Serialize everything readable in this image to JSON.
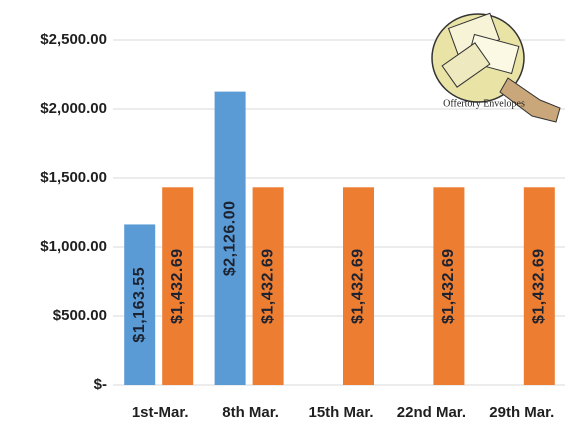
{
  "chart_data": {
    "type": "bar",
    "annotation": "Offertory Envelopes",
    "categories": [
      "1st-Mar.",
      "8th Mar.",
      "15th Mar.",
      "22nd Mar.",
      "29th Mar."
    ],
    "series": [
      {
        "color": "#5b9bd5",
        "values": [
          1163.55,
          2126.0,
          null,
          null,
          null
        ],
        "value_labels": [
          "$1,163.55",
          "$2,126.00",
          null,
          null,
          null
        ]
      },
      {
        "color": "#ed7d31",
        "values": [
          1432.69,
          1432.69,
          1432.69,
          1432.69,
          1432.69
        ],
        "value_labels": [
          "$1,432.69",
          "$1,432.69",
          "$1,432.69",
          "$1,432.69",
          "$1,432.69"
        ]
      }
    ],
    "ylim": [
      0,
      2500
    ],
    "yticks": [
      {
        "value": 0,
        "label": "$-"
      },
      {
        "value": 500,
        "label": "$500.00"
      },
      {
        "value": 1000,
        "label": "$1,000.00"
      },
      {
        "value": 1500,
        "label": "$1,500.00"
      },
      {
        "value": 2000,
        "label": "$2,000.00"
      },
      {
        "value": 2500,
        "label": "$2,500.00"
      }
    ],
    "grid": true
  }
}
